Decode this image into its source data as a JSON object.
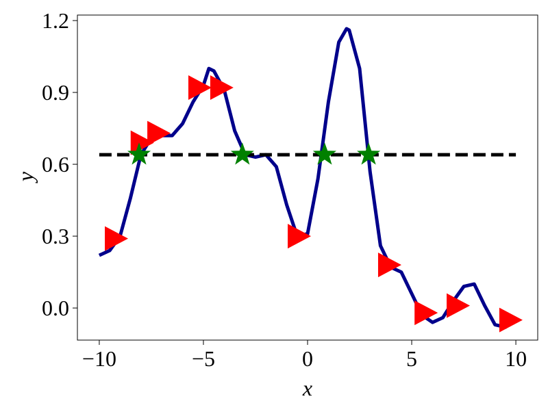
{
  "chart_data": {
    "type": "line",
    "xlabel": "x",
    "ylabel": "y",
    "xlim": [
      -11.05,
      11.05
    ],
    "ylim": [
      -0.134,
      1.223
    ],
    "xticks": [
      {
        "value": -10,
        "label": "−10"
      },
      {
        "value": -5,
        "label": "−5"
      },
      0,
      5,
      10
    ],
    "yticks": [
      {
        "value": 0,
        "label": "0.0"
      },
      0.3,
      0.6,
      0.9,
      1.2
    ],
    "grid": false,
    "series": [
      {
        "color": "#00008b",
        "marker": "none",
        "linestyle": "solid",
        "x": [
          -10,
          -9.5,
          -9,
          -8.5,
          -8,
          -7.5,
          -7,
          -6.5,
          -6,
          -5.5,
          -5,
          -4.74,
          -4.5,
          -4,
          -3.5,
          -3,
          -2.5,
          -2,
          -1.5,
          -1,
          -0.5,
          0,
          0.5,
          1,
          1.5,
          1.87,
          2,
          2.5,
          3,
          3.5,
          4,
          4.5,
          5,
          5.5,
          6,
          6.5,
          7,
          7.5,
          8,
          8.5,
          9,
          9.5,
          10
        ],
        "values": [
          0.22,
          0.24,
          0.3,
          0.46,
          0.64,
          0.71,
          0.72,
          0.72,
          0.77,
          0.86,
          0.93,
          1.0,
          0.99,
          0.91,
          0.74,
          0.64,
          0.63,
          0.64,
          0.59,
          0.43,
          0.3,
          0.31,
          0.54,
          0.86,
          1.11,
          1.166,
          1.16,
          1.0,
          0.57,
          0.26,
          0.17,
          0.15,
          0.06,
          -0.03,
          -0.06,
          -0.04,
          0.03,
          0.09,
          0.1,
          0.01,
          -0.07,
          -0.08,
          -0.04
        ]
      },
      {
        "color": "#000000",
        "marker": "none",
        "linestyle": "dashed",
        "x": [
          -10,
          10
        ],
        "values": [
          0.64,
          0.64
        ]
      },
      {
        "color": "#ff0000",
        "marker": "triangle-right",
        "linestyle": "none",
        "x": [
          -9.24,
          -8.0,
          -7.2,
          -5.23,
          -4.18,
          -0.46,
          3.88,
          5.63,
          7.17,
          9.7
        ],
        "values": [
          0.29,
          0.69,
          0.73,
          0.92,
          0.92,
          0.3,
          0.18,
          -0.02,
          0.01,
          -0.05
        ]
      },
      {
        "color": "#008000",
        "marker": "star",
        "linestyle": "none",
        "x": [
          -8.09,
          -3.13,
          0.82,
          2.93
        ],
        "values": [
          0.64,
          0.64,
          0.64,
          0.64
        ]
      }
    ]
  }
}
